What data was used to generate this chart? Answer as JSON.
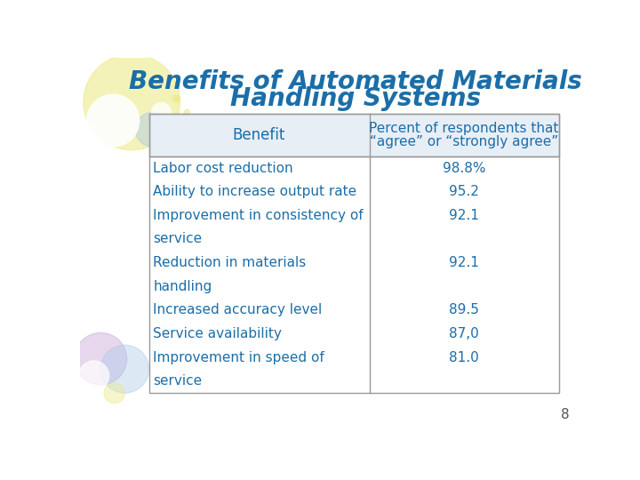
{
  "title_line1": "Benefits of Automated Materials",
  "title_line2": "Handling Systems",
  "title_color": "#1B6EA8",
  "title_fontsize": 20,
  "background_color": "#FFFFFF",
  "header_col1": "Benefit",
  "header_col2_line1": "Percent of respondents that",
  "header_col2_line2": "“agree” or “strongly agree”",
  "col1_items": [
    "Labor cost reduction",
    "Ability to increase output rate",
    "Improvement in consistency of",
    "service",
    "Reduction in materials",
    "handling",
    "Increased accuracy level",
    "Service availability",
    "Improvement in speed of",
    "service"
  ],
  "col2_items": [
    "98.8%",
    "95.2",
    "92.1",
    "",
    "92.1",
    "",
    "89.5",
    "87,0",
    "81.0",
    ""
  ],
  "table_text_color": "#1B6EA8",
  "page_number": "8",
  "deco_yellow": "#EAEA80",
  "deco_blue": "#A8C8E8",
  "deco_purple": "#C8A8D8",
  "deco_green": "#C8D8A0"
}
